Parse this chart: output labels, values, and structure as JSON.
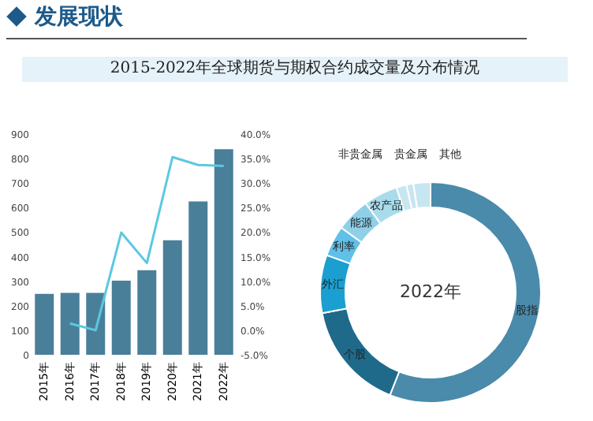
{
  "chart_data": [
    {
      "type": "bar",
      "title": "2015-2022年全球期货与期权合约成交量及分布情况",
      "annotations": [
        "发展现状"
      ],
      "categories": [
        "2015年",
        "2016年",
        "2017年",
        "2018年",
        "2019年",
        "2020年",
        "2021年",
        "2022年"
      ],
      "series": [
        {
          "type": "bar",
          "color": "#4a7f9a",
          "values": [
            248,
            252,
            252,
            302,
            345,
            467,
            625,
            838
          ]
        },
        {
          "type": "line",
          "axis": "y2",
          "color": "#5cc8e0",
          "values": [
            null,
            1.4,
            0.0,
            19.9,
            13.7,
            35.3,
            33.7,
            33.5
          ]
        }
      ],
      "ylim": [
        0,
        900
      ],
      "yticks": [
        0,
        100,
        200,
        300,
        400,
        500,
        600,
        700,
        800,
        900
      ],
      "y2lim": [
        -5,
        40
      ],
      "y2ticks": [
        {
          "value": -5,
          "label": "-5.0%"
        },
        {
          "value": 0,
          "label": "0.0%"
        },
        {
          "value": 5,
          "label": "5.0%"
        },
        {
          "value": 10,
          "label": "10.0%"
        },
        {
          "value": 15,
          "label": "15.0%"
        },
        {
          "value": 20,
          "label": "20.0%"
        },
        {
          "value": 25,
          "label": "25.0%"
        },
        {
          "value": 30,
          "label": "30.0%"
        },
        {
          "value": 35,
          "label": "35.0%"
        },
        {
          "value": 40,
          "label": "40.0%"
        }
      ]
    },
    {
      "type": "donut",
      "annotations": [
        "2022年"
      ],
      "categories": [
        "股指",
        "个股",
        "外汇",
        "利率",
        "能源",
        "农产品",
        "非贵金属",
        "贵金属",
        "其他"
      ],
      "values": [
        56,
        16,
        8.5,
        4.5,
        5,
        5,
        1.5,
        1,
        2.5
      ],
      "colors": [
        "#4a8aaa",
        "#1f6a8a",
        "#1a9fd0",
        "#5fc0e8",
        "#8fd0e8",
        "#a8dcec",
        "#c8e6f0",
        "#c8e6f0",
        "#c8e6f0"
      ]
    }
  ]
}
